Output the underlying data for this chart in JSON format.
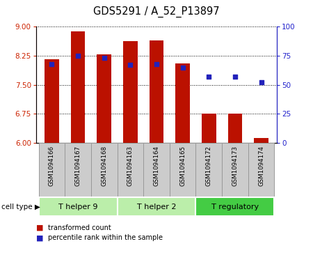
{
  "title": "GDS5291 / A_52_P13897",
  "samples": [
    "GSM1094166",
    "GSM1094167",
    "GSM1094168",
    "GSM1094163",
    "GSM1094164",
    "GSM1094165",
    "GSM1094172",
    "GSM1094173",
    "GSM1094174"
  ],
  "bar_values": [
    8.15,
    8.88,
    8.28,
    8.62,
    8.65,
    8.05,
    6.75,
    6.75,
    6.12
  ],
  "percentile_values": [
    68,
    75,
    73,
    67,
    68,
    65,
    57,
    57,
    52
  ],
  "ylim_left": [
    6,
    9
  ],
  "ylim_right": [
    0,
    100
  ],
  "yticks_left": [
    6,
    6.75,
    7.5,
    8.25,
    9
  ],
  "yticks_right": [
    0,
    25,
    50,
    75,
    100
  ],
  "bar_color": "#bb1100",
  "dot_color": "#2222bb",
  "bar_width": 0.55,
  "cell_type_groups": [
    {
      "label": "T helper 9",
      "indices": [
        0,
        1,
        2
      ],
      "color": "#bbeeaa"
    },
    {
      "label": "T helper 2",
      "indices": [
        3,
        4,
        5
      ],
      "color": "#bbeeaa"
    },
    {
      "label": "T regulatory",
      "indices": [
        6,
        7,
        8
      ],
      "color": "#44cc44"
    }
  ],
  "legend_bar_label": "transformed count",
  "legend_dot_label": "percentile rank within the sample",
  "background_color": "#ffffff",
  "tick_label_color_left": "#cc2200",
  "tick_label_color_right": "#2222cc",
  "label_box_color": "#cccccc",
  "label_box_edge": "#999999"
}
